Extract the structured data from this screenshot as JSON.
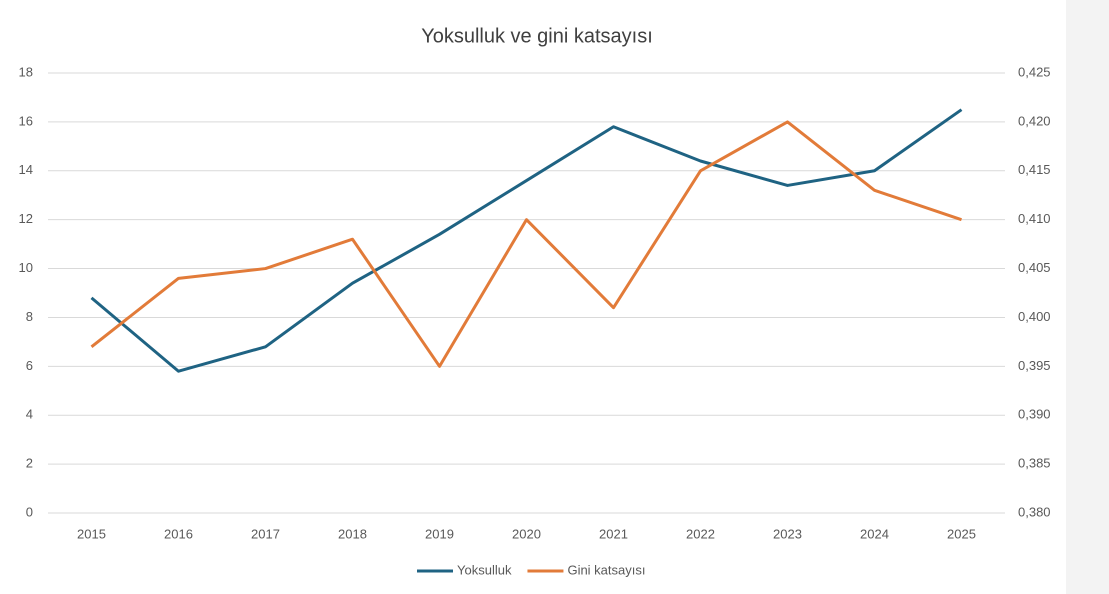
{
  "chart_data": {
    "type": "line",
    "title": "Yoksulluk ve gini katsayısı",
    "categories": [
      "2015",
      "2016",
      "2017",
      "2018",
      "2019",
      "2020",
      "2021",
      "2022",
      "2023",
      "2024",
      "2025"
    ],
    "series": [
      {
        "name": "Yoksulluk",
        "color": "#1f6383",
        "values": [
          8.8,
          5.8,
          6.8,
          9.4,
          11.4,
          13.6,
          15.8,
          14.4,
          13.4,
          14.0,
          16.5
        ]
      },
      {
        "name": "Gini katsayısı",
        "color": "#e27b39",
        "axis": "y2",
        "values": [
          0.397,
          0.404,
          0.405,
          0.408,
          0.395,
          0.41,
          0.401,
          0.415,
          0.42,
          0.413,
          0.41
        ]
      }
    ],
    "ylim": [
      0,
      18
    ],
    "yticks": [
      0,
      2,
      4,
      6,
      8,
      10,
      12,
      14,
      16,
      18
    ],
    "y2lim": [
      0.38,
      0.425
    ],
    "y2ticks": [
      {
        "value": 0.38,
        "label": "0,380"
      },
      {
        "value": 0.385,
        "label": "0,385"
      },
      {
        "value": 0.39,
        "label": "0,390"
      },
      {
        "value": 0.395,
        "label": "0,395"
      },
      {
        "value": 0.4,
        "label": "0,400"
      },
      {
        "value": 0.405,
        "label": "0,405"
      },
      {
        "value": 0.41,
        "label": "0,410"
      },
      {
        "value": 0.415,
        "label": "0,415"
      },
      {
        "value": 0.42,
        "label": "0,420"
      },
      {
        "value": 0.425,
        "label": "0,425"
      }
    ],
    "grid": true,
    "legend": "bottom"
  }
}
